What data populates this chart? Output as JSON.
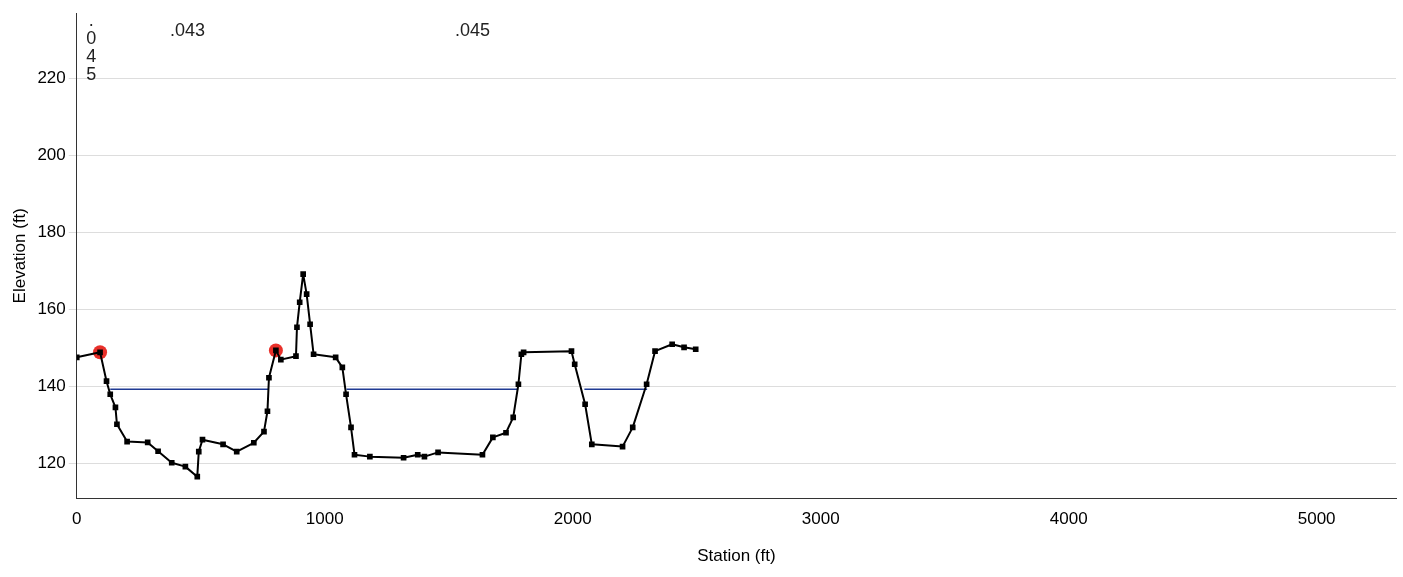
{
  "chart_data": {
    "type": "line",
    "xlabel": "Station (ft)",
    "ylabel": "Elevation (ft)",
    "xlim": [
      0,
      5320
    ],
    "xticks": [
      0,
      1000,
      2000,
      3000,
      4000,
      5000
    ],
    "ylim": [
      111,
      237
    ],
    "yticks": [
      120,
      140,
      160,
      180,
      200,
      220
    ],
    "grid": "y",
    "legend": false,
    "series": [
      {
        "color": "#000000",
        "marker": "square",
        "x": [
          0,
          94,
          120,
          135,
          156,
          162,
          203,
          286,
          328,
          383,
          438,
          486,
          492,
          507,
          590,
          645,
          714,
          755,
          769,
          775,
          803,
          823,
          884,
          888,
          899,
          913,
          927,
          941,
          955,
          1044,
          1071,
          1086,
          1106,
          1120,
          1182,
          1318,
          1375,
          1402,
          1457,
          1636,
          1678,
          1731,
          1760,
          1781,
          1793,
          1802,
          1995,
          2008,
          2050,
          2077,
          2201,
          2242,
          2298,
          2332,
          2401,
          2449,
          2496
        ],
        "values": [
          147.6,
          148.9,
          141.4,
          138,
          134.6,
          130.2,
          125.7,
          125.5,
          123.2,
          120.2,
          119.2,
          116.6,
          123.1,
          126.2,
          125,
          123.1,
          125.4,
          128.3,
          133.6,
          142.3,
          149.4,
          147,
          147.9,
          155.4,
          161.9,
          169.2,
          164,
          156.2,
          148.4,
          147.6,
          145,
          138,
          129.4,
          122.3,
          121.8,
          121.5,
          122.3,
          121.8,
          122.9,
          122.3,
          126.8,
          128,
          132,
          140.6,
          148.4,
          148.9,
          149.2,
          145.8,
          135.4,
          125,
          124.4,
          129.4,
          140.6,
          149.2,
          151,
          150.2,
          149.7
        ]
      },
      {
        "type": "line",
        "color": "#1f3a93",
        "marker": "none",
        "x": [
          135,
          775,
          930,
          1088,
          1780,
          1900,
          2047,
          2300
        ],
        "values": [
          139.3,
          139.3,
          null,
          139.3,
          139.3,
          null,
          139.3,
          139.3
        ]
      },
      {
        "type": "scatter",
        "color": "#e8302a",
        "marker": "circle",
        "x": [
          94,
          803
        ],
        "values": [
          148.9,
          149.4
        ]
      }
    ],
    "annotations": [
      ".045",
      ".043",
      ".045"
    ]
  }
}
